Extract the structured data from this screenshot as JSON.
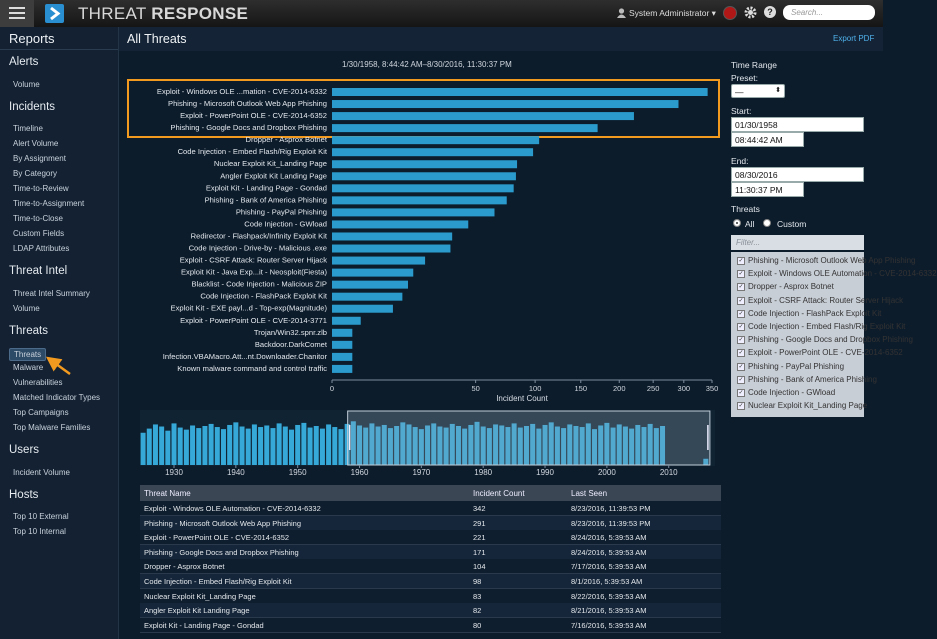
{
  "header": {
    "title_light": "THREAT",
    "title_bold": "RESPONSE",
    "user": "System Administrator",
    "search_placeholder": "Search..."
  },
  "sidebar": {
    "title": "Reports",
    "sections": [
      {
        "title": "Alerts",
        "items": [
          "Volume"
        ]
      },
      {
        "title": "Incidents",
        "items": [
          "Timeline",
          "Alert Volume",
          "By Assignment",
          "By Category",
          "Time-to-Review",
          "Time-to-Assignment",
          "Time-to-Close",
          "Custom Fields",
          "LDAP Attributes"
        ]
      },
      {
        "title": "Threat Intel",
        "items": [
          "Threat Intel Summary",
          "Volume"
        ]
      },
      {
        "title": "Threats",
        "items": [
          "Threats",
          "Malware",
          "Vulnerabilities",
          "Matched Indicator Types",
          "Top Campaigns",
          "Top Malware Families"
        ]
      },
      {
        "title": "Users",
        "items": [
          "Incident Volume"
        ]
      },
      {
        "title": "Hosts",
        "items": [
          "Top 10 External",
          "Top 10 Internal"
        ]
      }
    ]
  },
  "main": {
    "title": "All Threats",
    "export": "Export PDF",
    "range_text": "1/30/1958, 8:44:42 AM–8/30/2016, 11:30:37 PM"
  },
  "chart_data": [
    {
      "type": "bar",
      "orientation": "horizontal",
      "color": "#2a9bcc",
      "xscale": "sqrt",
      "x_label": "Incident Count",
      "categories": [
        "Exploit - Windows OLE ...mation - CVE-2014-6332",
        "Phishing - Microsoft Outlook Web App Phishing",
        "Exploit - PowerPoint OLE - CVE-2014-6352",
        "Phishing - Google Docs and Dropbox Phishing",
        "Dropper - Asprox Botnet",
        "Code Injection - Embed Flash/Rig Exploit Kit",
        "Nuclear Exploit Kit_Landing Page",
        "Angler Exploit Kit Landing Page",
        "Exploit Kit - Landing Page - Gondad",
        "Phishing - Bank of America Phishing",
        "Phishing - PayPal Phishing",
        "Code Injection - GWload",
        "Redirector - Flashpack/Infinity Exploit Kit",
        "Code Injection - Drive-by - Malicious .exe",
        "Exploit - CSRF Attack: Router Server Hijack",
        "Exploit Kit - Java Exp...it - Neosploit(Fiesta)",
        "Blacklist - Code Injection - Malicious ZIP",
        "Code Injection - FlashPack Exploit Kit",
        "Exploit Kit - EXE payl...d - Top-exp(Magnitude)",
        "Exploit - PowerPoint OLE - CVE-2014-3771",
        "Trojan/Win32.spnr.zlb",
        "Backdoor.DarkComet",
        "Infection.VBAMacro.Att...nt.Downloader.Chanitor",
        "Known malware command and control traffic"
      ],
      "values": [
        342,
        291,
        221,
        171,
        104,
        98,
        83,
        82,
        80,
        74,
        64,
        45,
        35,
        34,
        21,
        16,
        14,
        12,
        9,
        2,
        1,
        1,
        1,
        1
      ],
      "xlim": [
        0,
        350
      ],
      "xticks": [
        0,
        50,
        100,
        150,
        200,
        250,
        300,
        350
      ]
    },
    {
      "type": "column",
      "color": "#36a9d8",
      "xlim": [
        1924.5,
        2017
      ],
      "xticks": [
        1930,
        1940,
        1950,
        1960,
        1970,
        1980,
        1990,
        2000,
        2010
      ],
      "ylim": [
        0,
        100
      ],
      "brush": [
        1958.08,
        2016.66
      ],
      "x": [
        1925,
        1926,
        1927,
        1928,
        1929,
        1930,
        1931,
        1932,
        1933,
        1934,
        1935,
        1936,
        1937,
        1938,
        1939,
        1940,
        1941,
        1942,
        1943,
        1944,
        1945,
        1946,
        1947,
        1948,
        1949,
        1950,
        1951,
        1952,
        1953,
        1954,
        1955,
        1956,
        1957,
        1958,
        1959,
        1960,
        1961,
        1962,
        1963,
        1964,
        1965,
        1966,
        1967,
        1968,
        1969,
        1970,
        1971,
        1972,
        1973,
        1974,
        1975,
        1976,
        1977,
        1978,
        1979,
        1980,
        1981,
        1982,
        1983,
        1984,
        1985,
        1986,
        1987,
        1988,
        1989,
        1990,
        1991,
        1992,
        1993,
        1994,
        1995,
        1996,
        1997,
        1998,
        1999,
        2000,
        2001,
        2002,
        2003,
        2004,
        2005,
        2006,
        2007,
        2008,
        2009,
        2016
      ],
      "values": [
        62,
        70,
        78,
        74,
        66,
        80,
        72,
        68,
        76,
        71,
        75,
        79,
        73,
        69,
        77,
        82,
        74,
        70,
        78,
        73,
        76,
        71,
        80,
        74,
        68,
        77,
        81,
        72,
        75,
        70,
        78,
        73,
        69,
        79,
        84,
        76,
        72,
        80,
        74,
        77,
        71,
        75,
        82,
        78,
        73,
        69,
        76,
        80,
        74,
        72,
        79,
        75,
        70,
        77,
        83,
        74,
        71,
        78,
        76,
        73,
        80,
        72,
        75,
        79,
        70,
        77,
        82,
        74,
        71,
        78,
        75,
        73,
        80,
        69,
        76,
        81,
        72,
        78,
        74,
        70,
        77,
        73,
        79,
        71,
        75,
        12
      ]
    }
  ],
  "filters": {
    "time_range": "Time Range",
    "preset_label": "Preset:",
    "preset_value": "—",
    "start_label": "Start:",
    "start_date": "01/30/1958",
    "start_time": "08:44:42 AM",
    "end_label": "End:",
    "end_date": "08/30/2016",
    "end_time": "11:30:37 PM",
    "threats_label": "Threats",
    "all": "All",
    "custom": "Custom",
    "filter_placeholder": "Filter...",
    "items": [
      "Phishing - Microsoft Outlook Web App Phishing",
      "Exploit - Windows OLE Automation - CVE-2014-6332",
      "Dropper - Asprox Botnet",
      "Exploit - CSRF Attack: Router Server Hijack",
      "Code Injection - FlashPack Exploit Kit",
      "Code Injection - Embed Flash/Rig Exploit Kit",
      "Phishing - Google Docs and Dropbox Phishing",
      "Exploit - PowerPoint OLE - CVE-2014-6352",
      "Phishing - PayPal Phishing",
      "Phishing - Bank of America Phishing",
      "Code Injection - GWload",
      "Nuclear Exploit Kit_Landing Page"
    ]
  },
  "table": {
    "columns": [
      "Threat Name",
      "Incident Count",
      "Last Seen"
    ],
    "rows": [
      [
        "Exploit - Windows OLE Automation - CVE-2014-6332",
        342,
        "8/23/2016, 11:39:53 PM"
      ],
      [
        "Phishing - Microsoft Outlook Web App Phishing",
        291,
        "8/23/2016, 11:39:53 PM"
      ],
      [
        "Exploit - PowerPoint OLE - CVE-2014-6352",
        221,
        "8/24/2016, 5:39:53 AM"
      ],
      [
        "Phishing - Google Docs and Dropbox Phishing",
        171,
        "8/24/2016, 5:39:53 AM"
      ],
      [
        "Dropper - Asprox Botnet",
        104,
        "7/17/2016, 5:39:53 AM"
      ],
      [
        "Code Injection - Embed Flash/Rig Exploit Kit",
        98,
        "8/1/2016, 5:39:53 AM"
      ],
      [
        "Nuclear Exploit Kit_Landing Page",
        83,
        "8/22/2016, 5:39:53 AM"
      ],
      [
        "Angler Exploit Kit Landing Page",
        82,
        "8/21/2016, 5:39:53 AM"
      ],
      [
        "Exploit Kit - Landing Page - Gondad",
        80,
        "7/16/2016, 5:39:53 AM"
      ]
    ]
  }
}
